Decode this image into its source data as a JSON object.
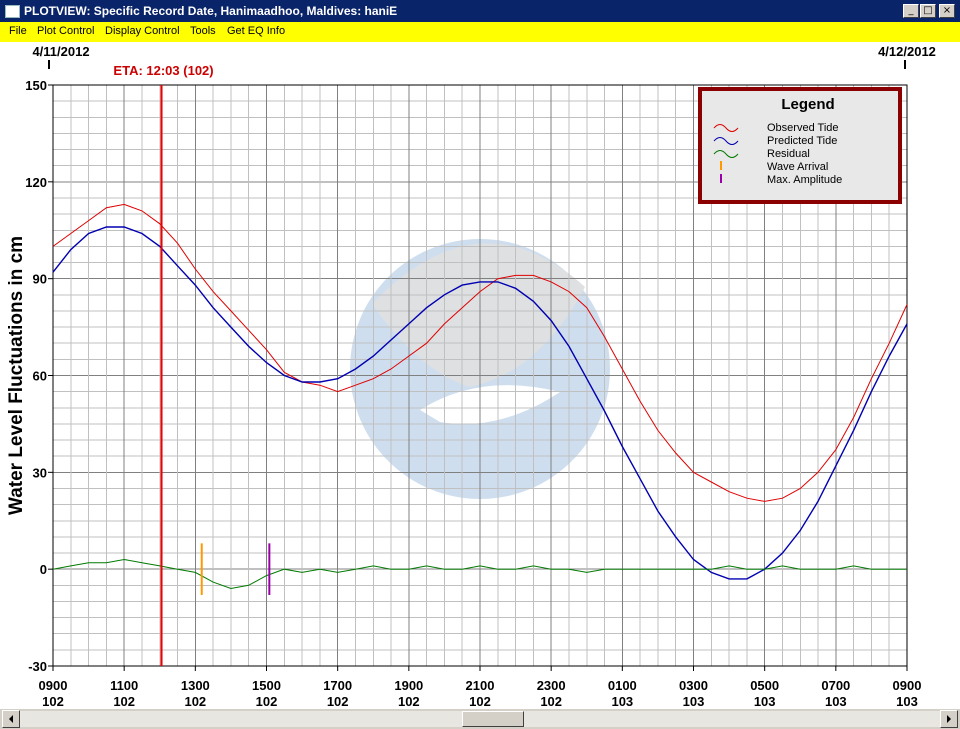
{
  "window": {
    "title": "PLOTVIEW: Specific Record Date, Hanimaadhoo, Maldives: haniE",
    "controls": {
      "minimize": "_",
      "maximize": "□",
      "close": "×"
    }
  },
  "menu": [
    {
      "label": "File"
    },
    {
      "label": "Plot Control"
    },
    {
      "label": "Display Control"
    },
    {
      "label": "Tools"
    },
    {
      "label": "Get EQ Info"
    }
  ],
  "colors": {
    "observed": "#e00000",
    "predicted": "#0000b0",
    "residual": "#007a00",
    "eta_line": "#ee0000",
    "wave_arrival": "#ff9900",
    "max_amplitude": "#9900aa",
    "grid": "#a0a0a0",
    "legend_border": "#8b0000",
    "legend_bg": "#e8e8e8",
    "menubar": "#ffff00",
    "titlebar": "#0a246a"
  },
  "chart_data": {
    "type": "line",
    "title": "",
    "ylabel": "Water Level Fluctuations in cm",
    "xlabel": "",
    "ylim": [
      -30,
      150
    ],
    "xlim": [
      9,
      33
    ],
    "yticks": [
      150,
      120,
      90,
      60,
      30,
      0,
      -30
    ],
    "x_unit": "hours since 0900 on day 102",
    "date_labels": [
      {
        "text": "4/11/2012",
        "x": 9
      },
      {
        "text": "4/12/2012",
        "x": 33
      }
    ],
    "xticks": [
      {
        "x": 9,
        "time": "0900",
        "day": "102"
      },
      {
        "x": 11,
        "time": "1100",
        "day": "102"
      },
      {
        "x": 13,
        "time": "1300",
        "day": "102"
      },
      {
        "x": 15,
        "time": "1500",
        "day": "102"
      },
      {
        "x": 17,
        "time": "1700",
        "day": "102"
      },
      {
        "x": 19,
        "time": "1900",
        "day": "102"
      },
      {
        "x": 21,
        "time": "2100",
        "day": "102"
      },
      {
        "x": 23,
        "time": "2300",
        "day": "102"
      },
      {
        "x": 25,
        "time": "0100",
        "day": "103"
      },
      {
        "x": 27,
        "time": "0300",
        "day": "103"
      },
      {
        "x": 29,
        "time": "0500",
        "day": "103"
      },
      {
        "x": 31,
        "time": "0700",
        "day": "103"
      },
      {
        "x": 33,
        "time": "0900",
        "day": "103"
      }
    ],
    "eta": {
      "label": "ETA: 12:03 (102)",
      "x": 12.05
    },
    "wave_arrival": {
      "x": 13.18,
      "ymin": -8,
      "ymax": 8
    },
    "max_amplitude": {
      "x": 15.08,
      "ymin": -8,
      "ymax": 8
    },
    "legend": {
      "title": "Legend",
      "position": "top-right",
      "items": [
        {
          "label": "Observed Tide",
          "key": "observed",
          "kind": "wave"
        },
        {
          "label": "Predicted Tide",
          "key": "predicted",
          "kind": "wave"
        },
        {
          "label": "Residual",
          "key": "residual",
          "kind": "wave"
        },
        {
          "label": "Wave Arrival",
          "key": "wave_arrival",
          "kind": "bar"
        },
        {
          "label": "Max. Amplitude",
          "key": "max_amplitude",
          "kind": "bar"
        }
      ]
    },
    "series": [
      {
        "name": "Observed Tide",
        "key": "observed",
        "x": [
          9,
          9.5,
          10,
          10.5,
          11,
          11.5,
          12,
          12.5,
          13,
          13.5,
          14,
          14.5,
          15,
          15.5,
          16,
          16.5,
          17,
          17.5,
          18,
          18.5,
          19,
          19.5,
          20,
          20.5,
          21,
          21.5,
          22,
          22.5,
          23,
          23.5,
          24,
          24.5,
          25,
          25.5,
          26,
          26.5,
          27,
          27.5,
          28,
          28.5,
          29,
          29.5,
          30,
          30.5,
          31,
          31.5,
          32,
          32.5,
          33
        ],
        "y": [
          100,
          104,
          108,
          112,
          113,
          111,
          107,
          101,
          93,
          86,
          80,
          74,
          68,
          61,
          58,
          57,
          55,
          57,
          59,
          62,
          66,
          70,
          76,
          81,
          86,
          90,
          91,
          91,
          89,
          86,
          81,
          72,
          62,
          52,
          43,
          36,
          30,
          27,
          24,
          22,
          21,
          22,
          25,
          30,
          37,
          47,
          59,
          70,
          82
        ]
      },
      {
        "name": "Predicted Tide",
        "key": "predicted",
        "x": [
          9,
          9.5,
          10,
          10.5,
          11,
          11.5,
          12,
          12.5,
          13,
          13.5,
          14,
          14.5,
          15,
          15.5,
          16,
          16.5,
          17,
          17.5,
          18,
          18.5,
          19,
          19.5,
          20,
          20.5,
          21,
          21.5,
          22,
          22.5,
          23,
          23.5,
          24,
          24.5,
          25,
          25.5,
          26,
          26.5,
          27,
          27.5,
          28,
          28.5,
          29,
          29.5,
          30,
          30.5,
          31,
          31.5,
          32,
          32.5,
          33
        ],
        "y": [
          92,
          99,
          104,
          106,
          106,
          104,
          100,
          94,
          88,
          81,
          75,
          69,
          64,
          60,
          58,
          58,
          59,
          62,
          66,
          71,
          76,
          81,
          85,
          88,
          89,
          89,
          87,
          83,
          77,
          69,
          59,
          49,
          38,
          28,
          18,
          10,
          3,
          -1,
          -3,
          -3,
          0,
          5,
          12,
          21,
          32,
          43,
          55,
          66,
          76
        ]
      },
      {
        "name": "Residual",
        "key": "residual",
        "x": [
          9,
          9.5,
          10,
          10.5,
          11,
          11.5,
          12,
          12.5,
          13,
          13.5,
          14,
          14.5,
          15,
          15.5,
          16,
          16.5,
          17,
          17.5,
          18,
          18.5,
          19,
          19.5,
          20,
          20.5,
          21,
          21.5,
          22,
          22.5,
          23,
          23.5,
          24,
          24.5,
          25,
          25.5,
          26,
          26.5,
          27,
          27.5,
          28,
          28.5,
          29,
          29.5,
          30,
          30.5,
          31,
          31.5,
          32,
          32.5,
          33
        ],
        "y": [
          0,
          1,
          2,
          2,
          3,
          2,
          1,
          0,
          -1,
          -4,
          -6,
          -5,
          -2,
          0,
          -1,
          0,
          -1,
          0,
          1,
          0,
          0,
          1,
          0,
          0,
          1,
          0,
          0,
          1,
          0,
          0,
          -1,
          0,
          0,
          0,
          0,
          0,
          0,
          0,
          1,
          0,
          0,
          1,
          0,
          0,
          0,
          1,
          0,
          0,
          0
        ]
      }
    ]
  },
  "scrollbar": {
    "left_arrow": "scroll-left",
    "right_arrow": "scroll-right"
  }
}
